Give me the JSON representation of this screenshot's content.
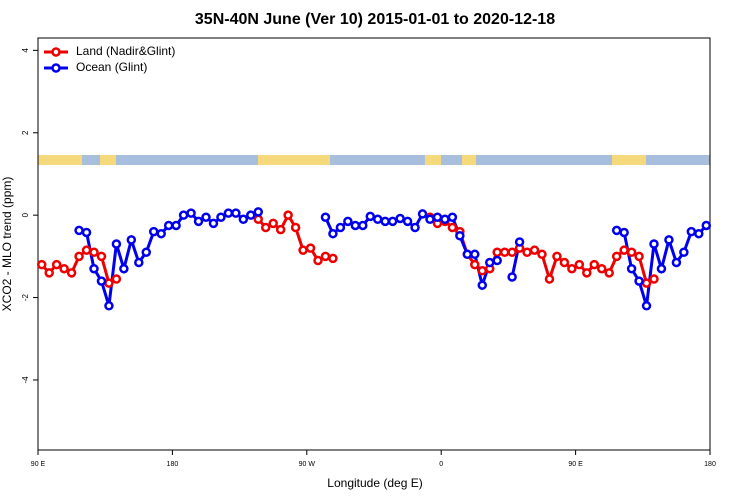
{
  "chart_data": {
    "type": "line",
    "title": "35N-40N June (Ver 10)   2015-01-01 to 2020-12-18",
    "xlabel": "Longitude (deg E)",
    "ylabel": "XCO2 - MLO trend (ppm)",
    "xlim": [
      90,
      540
    ],
    "ylim": [
      -5.7,
      4.3
    ],
    "xticks": [
      {
        "value": 90,
        "label": "90 E"
      },
      180,
      {
        "value": 270,
        "label": "90 W"
      },
      {
        "value": 360,
        "label": "0"
      },
      {
        "value": 450,
        "label": "90 E"
      },
      {
        "value": 540,
        "label": "180"
      }
    ],
    "yticks": [
      4,
      2,
      0,
      -2,
      -4
    ],
    "legend": "top-left",
    "x": [
      92.5,
      97.5,
      102.5,
      107.5,
      112.5,
      117.5,
      122.5,
      127.5,
      132.5,
      137.5,
      142.5,
      147.5,
      152.5,
      157.5,
      162.5,
      167.5,
      172.5,
      177.5,
      182.5,
      187.5,
      192.5,
      197.5,
      202.5,
      207.5,
      212.5,
      217.5,
      222.5,
      227.5,
      232.5,
      237.5,
      242.5,
      247.5,
      252.5,
      257.5,
      262.5,
      267.5,
      272.5,
      277.5,
      282.5,
      287.5,
      292.5,
      297.5,
      302.5,
      307.5,
      312.5,
      317.5,
      322.5,
      327.5,
      332.5,
      337.5,
      342.5,
      347.5,
      352.5,
      357.5,
      362.5,
      367.5,
      372.5,
      377.5,
      382.5,
      387.5,
      392.5,
      397.5,
      402.5,
      407.5,
      412.5,
      417.5,
      422.5,
      427.5,
      432.5,
      437.5,
      442.5,
      447.5,
      452.5,
      457.5,
      462.5,
      467.5,
      472.5,
      477.5,
      482.5,
      487.5,
      492.5,
      497.5,
      502.5,
      507.5,
      512.5,
      517.5,
      522.5,
      527.5,
      532.5,
      537.5
    ],
    "series": [
      {
        "name": "Land (Nadir&Glint)",
        "color": "#ee0000",
        "values": [
          -1.2,
          -1.4,
          -1.2,
          -1.3,
          -1.4,
          -1.0,
          -0.85,
          -0.9,
          -1.0,
          -1.65,
          -1.55,
          null,
          null,
          null,
          null,
          null,
          null,
          null,
          null,
          null,
          null,
          null,
          null,
          null,
          null,
          null,
          null,
          null,
          null,
          -0.1,
          -0.3,
          -0.2,
          -0.35,
          0.0,
          -0.3,
          -0.85,
          -0.8,
          -1.1,
          -1.0,
          -1.05,
          null,
          null,
          null,
          null,
          null,
          null,
          null,
          null,
          null,
          null,
          null,
          null,
          -0.05,
          -0.2,
          -0.15,
          -0.3,
          -0.4,
          -0.95,
          -1.2,
          -1.35,
          -1.3,
          -0.9,
          -0.9,
          -0.9,
          -0.8,
          -0.9,
          -0.85,
          -0.95,
          -1.55,
          -1.0,
          -1.15,
          -1.3,
          -1.2,
          -1.4,
          -1.2,
          -1.3,
          -1.4,
          -1.0,
          -0.85,
          -0.9,
          -1.0,
          -1.65,
          -1.55,
          null,
          null,
          null,
          null,
          null,
          null,
          null
        ]
      },
      {
        "name": "Ocean (Glint)",
        "color": "#0000ee",
        "values": [
          null,
          null,
          null,
          null,
          null,
          -0.37,
          -0.42,
          -1.3,
          -1.6,
          -2.2,
          -0.7,
          -1.3,
          -0.6,
          -1.15,
          -0.9,
          -0.4,
          -0.45,
          -0.25,
          -0.25,
          0.0,
          0.05,
          -0.15,
          -0.05,
          -0.2,
          -0.05,
          0.05,
          0.05,
          -0.1,
          0.0,
          0.08,
          null,
          null,
          null,
          null,
          null,
          null,
          null,
          null,
          -0.05,
          -0.45,
          -0.3,
          -0.15,
          -0.25,
          -0.25,
          -0.03,
          -0.1,
          -0.15,
          -0.15,
          -0.08,
          -0.15,
          -0.3,
          0.03,
          -0.1,
          -0.05,
          -0.1,
          -0.05,
          -0.5,
          -0.95,
          -0.95,
          -1.7,
          -1.15,
          -1.1,
          null,
          -1.5,
          -0.65,
          null,
          null,
          null,
          null,
          null,
          null,
          null,
          null,
          null,
          null,
          null,
          null,
          -0.37,
          -0.42,
          -1.3,
          -1.6,
          -2.2,
          -0.7,
          -1.3,
          -0.6,
          -1.15,
          -0.9,
          -0.4,
          -0.45,
          -0.25
        ]
      }
    ]
  }
}
